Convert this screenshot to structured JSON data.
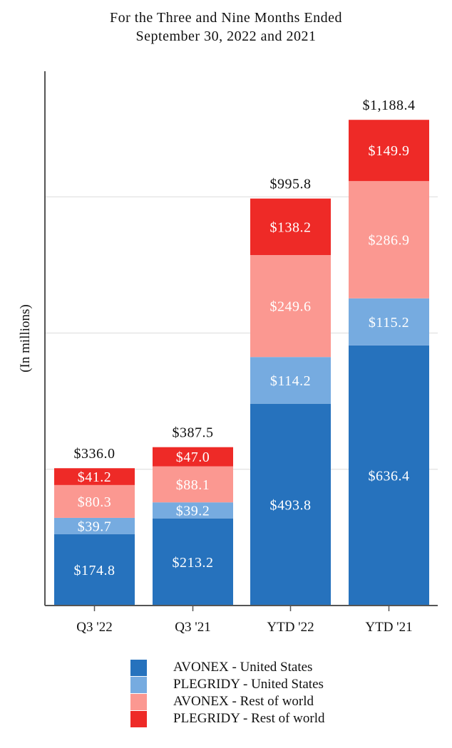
{
  "colors": {
    "avonex_us": "#2672BD",
    "plegridy_us": "#76ABE0",
    "avonex_row": "#FB9891",
    "plegridy_row": "#EE2A27",
    "gridline": "#dcdcdc",
    "axis": "#555555"
  },
  "chart_data": {
    "type": "bar",
    "stacked": true,
    "title": "For the Three and Nine Months Ended",
    "subtitle": "September 30, 2022 and 2021",
    "xlabel": "",
    "ylabel": "(In millions)",
    "ylim": [
      0,
      1325
    ],
    "grid": true,
    "legend_position": "bottom",
    "categories": [
      "Q3 '22",
      "Q3 '21",
      "YTD '22",
      "YTD '21"
    ],
    "series": [
      {
        "name": "AVONEX - United States",
        "values": [
          174.8,
          213.2,
          493.8,
          636.4
        ],
        "labels": [
          "$174.8",
          "$213.2",
          "$493.8",
          "$636.4"
        ]
      },
      {
        "name": "PLEGRIDY - United States",
        "values": [
          39.7,
          39.2,
          114.2,
          115.2
        ],
        "labels": [
          "$39.7",
          "$39.2",
          "$114.2",
          "$115.2"
        ]
      },
      {
        "name": "AVONEX - Rest of world",
        "values": [
          80.3,
          88.1,
          249.6,
          286.9
        ],
        "labels": [
          "$80.3",
          "$88.1",
          "$249.6",
          "$286.9"
        ]
      },
      {
        "name": "PLEGRIDY - Rest of world",
        "values": [
          41.2,
          47.0,
          138.2,
          149.9
        ],
        "labels": [
          "$41.2",
          "$47.0",
          "$138.2",
          "$149.9"
        ]
      }
    ],
    "totals": [
      336.0,
      387.5,
      995.8,
      1188.4
    ],
    "total_labels": [
      "$336.0",
      "$387.5",
      "$995.8",
      "$1,188.4"
    ],
    "gridlines": [
      333.3,
      666.7,
      1000
    ]
  }
}
